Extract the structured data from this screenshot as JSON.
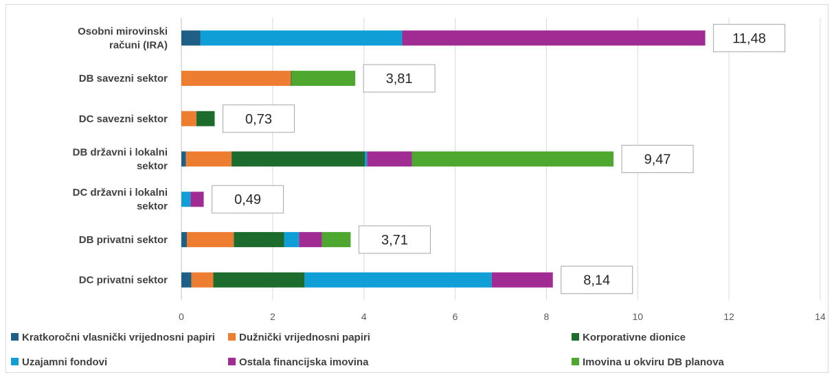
{
  "chart_data": {
    "type": "bar",
    "orientation": "horizontal",
    "stacked": true,
    "categories": [
      "Osobni mirovinski računi (IRA)",
      "DB savezni sektor",
      "DC savezni sektor",
      "DB državni i lokalni sektor",
      "DC državni i lokalni sektor",
      "DB privatni sektor",
      "DC privatni sektor"
    ],
    "category_lines": [
      [
        "Osobni mirovinski",
        "računi (IRA)"
      ],
      [
        "DB savezni sektor"
      ],
      [
        "DC savezni sektor"
      ],
      [
        "DB državni i lokalni",
        "sektor"
      ],
      [
        "DC državni i lokalni",
        "sektor"
      ],
      [
        "DB privatni sektor"
      ],
      [
        "DC privatni sektor"
      ]
    ],
    "series": [
      {
        "name": "Kratkoročni vlasnički vrijednosni papiri",
        "color": "#1f5f85",
        "values": [
          0.42,
          0.0,
          0.0,
          0.1,
          0.0,
          0.12,
          0.22
        ]
      },
      {
        "name": "Dužnički vrijednosni papiri",
        "color": "#ed7d31",
        "values": [
          0.0,
          2.4,
          0.33,
          1.0,
          0.0,
          1.03,
          0.48
        ]
      },
      {
        "name": "Korporativne dionice",
        "color": "#1e6b2e",
        "values": [
          0.0,
          0.02,
          0.4,
          2.92,
          0.0,
          1.1,
          2.0
        ]
      },
      {
        "name": "Uzajamni fondovi",
        "color": "#0f9ed5",
        "values": [
          4.42,
          0.0,
          0.0,
          0.05,
          0.2,
          0.33,
          4.1
        ]
      },
      {
        "name": "Ostala financijska imovina",
        "color": "#a02b93",
        "values": [
          6.64,
          0.0,
          0.0,
          0.98,
          0.29,
          0.5,
          1.34
        ]
      },
      {
        "name": "Imovina u okviru DB planova",
        "color": "#4ea72e",
        "values": [
          0.0,
          1.39,
          0.0,
          4.42,
          0.0,
          0.63,
          0.0
        ]
      }
    ],
    "totals": [
      "11,48",
      "3,81",
      "0,73",
      "9,47",
      "0,49",
      "3,71",
      "8,14"
    ],
    "xlim": [
      0,
      14
    ],
    "x_ticks": [
      0,
      2,
      4,
      6,
      8,
      10,
      12,
      14
    ],
    "grid": true,
    "legend_position": "bottom",
    "title": "",
    "xlabel": "",
    "ylabel": ""
  }
}
